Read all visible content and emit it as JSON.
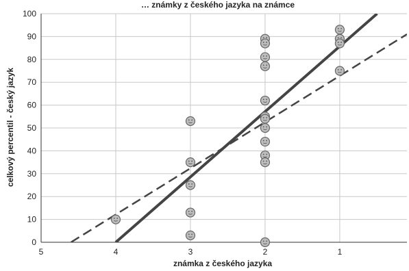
{
  "chart_data": {
    "type": "scatter",
    "title": "… známky z českého jazyka na známce",
    "xlabel": "známka z českého jazyka",
    "ylabel": "celkový percentil - český jazyk",
    "x_ticks": [
      "5",
      "4",
      "3",
      "2",
      "1"
    ],
    "y_ticks": [
      "0",
      "10",
      "20",
      "30",
      "40",
      "50",
      "60",
      "70",
      "80",
      "90",
      "100"
    ],
    "xlim": [
      5,
      0.1
    ],
    "ylim": [
      0,
      100
    ],
    "x_reversed": true,
    "grid": true,
    "legend": "none",
    "series": [
      {
        "marker": "smiley-circle",
        "points": [
          [
            4,
            10
          ],
          [
            3,
            53
          ],
          [
            3,
            35
          ],
          [
            3,
            25
          ],
          [
            3,
            13
          ],
          [
            3,
            3
          ],
          [
            2,
            89
          ],
          [
            2,
            87
          ],
          [
            2,
            81
          ],
          [
            2,
            77
          ],
          [
            2,
            62
          ],
          [
            2,
            55
          ],
          [
            2,
            54
          ],
          [
            2,
            50
          ],
          [
            2,
            44
          ],
          [
            2,
            38
          ],
          [
            2,
            35
          ],
          [
            2,
            0
          ],
          [
            1,
            93
          ],
          [
            1,
            89
          ],
          [
            1,
            87
          ],
          [
            1,
            75
          ]
        ]
      }
    ],
    "lines": [
      {
        "style": "solid",
        "color": "#444444",
        "from": [
          4,
          0
        ],
        "to": [
          0.5,
          100
        ]
      },
      {
        "style": "dashed",
        "color": "#444444",
        "from": [
          4.6,
          0
        ],
        "to": [
          0.1,
          91
        ]
      }
    ]
  },
  "colors": {
    "grid": "#c8c8c8",
    "axis": "#333333",
    "marker_fill": "#bdbdbd",
    "marker_stroke": "#666666"
  }
}
